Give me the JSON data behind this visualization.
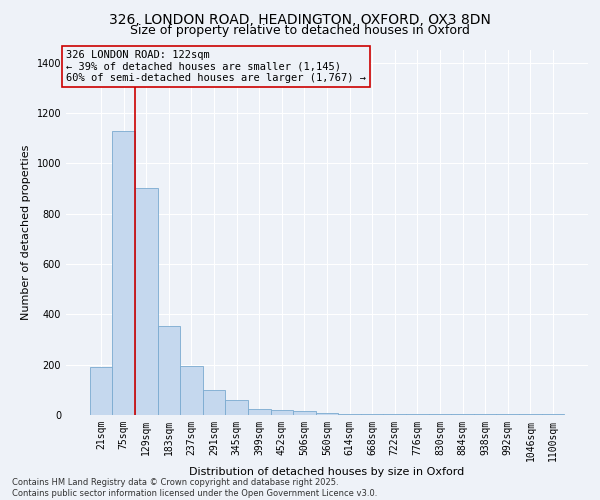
{
  "title_line1": "326, LONDON ROAD, HEADINGTON, OXFORD, OX3 8DN",
  "title_line2": "Size of property relative to detached houses in Oxford",
  "xlabel": "Distribution of detached houses by size in Oxford",
  "ylabel": "Number of detached properties",
  "bar_color": "#c5d8ee",
  "bar_edge_color": "#7aaad0",
  "vline_color": "#cc0000",
  "vline_x": 1.5,
  "annotation_title": "326 LONDON ROAD: 122sqm",
  "annotation_line2": "← 39% of detached houses are smaller (1,145)",
  "annotation_line3": "60% of semi-detached houses are larger (1,767) →",
  "categories": [
    "21sqm",
    "75sqm",
    "129sqm",
    "183sqm",
    "237sqm",
    "291sqm",
    "345sqm",
    "399sqm",
    "452sqm",
    "506sqm",
    "560sqm",
    "614sqm",
    "668sqm",
    "722sqm",
    "776sqm",
    "830sqm",
    "884sqm",
    "938sqm",
    "992sqm",
    "1046sqm",
    "1100sqm"
  ],
  "values": [
    190,
    1130,
    900,
    355,
    195,
    100,
    60,
    25,
    20,
    15,
    8,
    5,
    4,
    3,
    2,
    2,
    2,
    2,
    2,
    2,
    5
  ],
  "ylim": [
    0,
    1450
  ],
  "yticks": [
    0,
    200,
    400,
    600,
    800,
    1000,
    1200,
    1400
  ],
  "footer_line1": "Contains HM Land Registry data © Crown copyright and database right 2025.",
  "footer_line2": "Contains public sector information licensed under the Open Government Licence v3.0.",
  "bg_color": "#eef2f8",
  "grid_color": "#ffffff",
  "title_fontsize": 10,
  "subtitle_fontsize": 9,
  "axis_label_fontsize": 8,
  "tick_fontsize": 7,
  "footer_fontsize": 6,
  "annotation_fontsize": 7.5
}
